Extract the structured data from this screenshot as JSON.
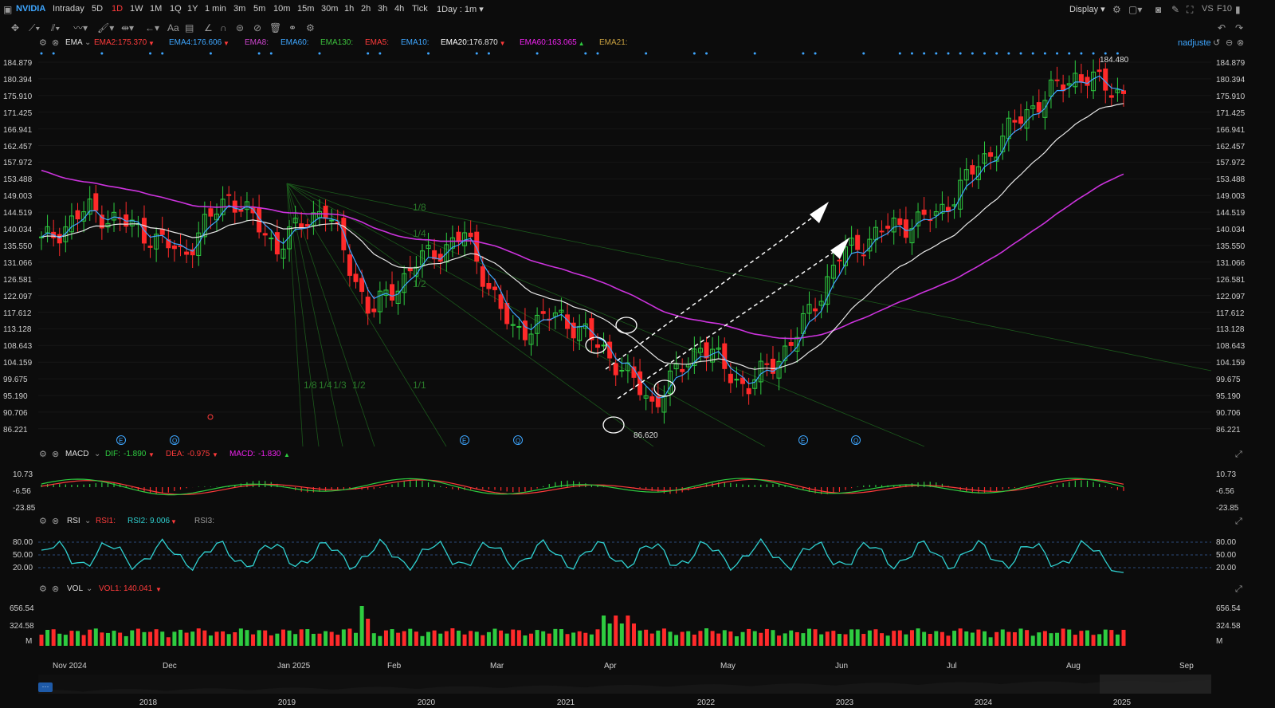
{
  "toolbar": {
    "symbol": "NVIDIA",
    "periods": [
      "Intraday",
      "5D",
      "1D",
      "1W",
      "1M",
      "1Q",
      "1Y",
      "1 min",
      "3m",
      "5m",
      "10m",
      "15m",
      "30m",
      "1h",
      "2h",
      "3h",
      "4h",
      "Tick"
    ],
    "active_period": "1D",
    "range_select": "1Day : 1m",
    "display": "Display",
    "vs": "VS",
    "f10": "F10"
  },
  "ema_header": {
    "name": "EMA",
    "items": [
      {
        "label": "EMA2:",
        "value": "175.370",
        "color": "#ff3b3b",
        "arrow": "▼"
      },
      {
        "label": "EMA4:",
        "value": "176.606",
        "color": "#3ea6ff",
        "arrow": "▼"
      },
      {
        "label": "EMA8:",
        "value": "",
        "color": "#cc44cc",
        "arrow": ""
      },
      {
        "label": "EMA60:",
        "value": "",
        "color": "#3ea6ff",
        "arrow": ""
      },
      {
        "label": "EMA130:",
        "value": "",
        "color": "#3cbe3c",
        "arrow": ""
      },
      {
        "label": "EMA5:",
        "value": "",
        "color": "#ff3b3b",
        "arrow": ""
      },
      {
        "label": "EMA10:",
        "value": "",
        "color": "#3ea6ff",
        "arrow": ""
      },
      {
        "label": "EMA20:",
        "value": "176.870",
        "color": "#ffffff",
        "arrow": "▼"
      },
      {
        "label": "EMA60:",
        "value": "163.065",
        "color": "#ee22ee",
        "arrow": "▲"
      },
      {
        "label": "EMA21:",
        "value": "",
        "color": "#c8a040",
        "arrow": ""
      }
    ],
    "user": "nadjuste"
  },
  "price_axis": [
    "184.879",
    "180.394",
    "175.910",
    "171.425",
    "166.941",
    "162.457",
    "157.972",
    "153.488",
    "149.003",
    "144.519",
    "140.034",
    "135.550",
    "131.066",
    "126.581",
    "122.097",
    "117.612",
    "113.128",
    "108.643",
    "104.159",
    "99.675",
    "95.190",
    "90.706",
    "86.221"
  ],
  "annotations": {
    "high_label": "184.480",
    "low_label": "86.620",
    "fan_labels": [
      "1/8",
      "1/4",
      "1/2",
      "1/1",
      "1/8",
      "1/4",
      "1/3",
      "1/2"
    ],
    "event_markers": [
      "E",
      "Q",
      "E",
      "Q",
      "E",
      "Q"
    ]
  },
  "macd_header": {
    "name": "MACD",
    "dif_label": "DIF:",
    "dif_value": "-1.890",
    "dif_arrow": "▼",
    "dea_label": "DEA:",
    "dea_value": "-0.975",
    "dea_arrow": "▼",
    "macd_label": "MACD:",
    "macd_value": "-1.830",
    "macd_arrow": "▲",
    "axis": [
      "10.73",
      "-6.56",
      "-23.85"
    ]
  },
  "rsi_header": {
    "name": "RSI",
    "rsi1_label": "RSI1:",
    "rsi2_label": "RSI2:",
    "rsi2_value": "9.006",
    "rsi2_arrow": "▼",
    "rsi3_label": "RSI3:",
    "axis": [
      "80.00",
      "50.00",
      "20.00"
    ]
  },
  "vol_header": {
    "name": "VOL",
    "vol1_label": "VOL1:",
    "vol1_value": "140.041",
    "vol1_arrow": "▼",
    "axis": [
      "656.54",
      "324.58",
      "M"
    ]
  },
  "time_axis": [
    "Nov 2024",
    "Dec",
    "Jan 2025",
    "Feb",
    "Mar",
    "Apr",
    "May",
    "Jun",
    "Jul",
    "Aug",
    "Sep"
  ],
  "overview_axis": [
    "2018",
    "2019",
    "2020",
    "2021",
    "2022",
    "2023",
    "2024",
    "2025"
  ],
  "colors": {
    "up": "#2ecc40",
    "down": "#ff2a2a",
    "ema_fast": "#3ea6ff",
    "ema20": "#e8e8e8",
    "ema60": "#cc33dd",
    "accent": "#3ea6ff"
  },
  "chart_data": {
    "type": "candlestick",
    "title": "NVIDIA",
    "ylim": [
      86.221,
      184.879
    ],
    "high": 184.48,
    "low": 86.62,
    "ema20_last": 176.87,
    "ema60_last": 163.065,
    "close_path": [
      {
        "x": "Nov 2024",
        "y": 137
      },
      {
        "x": "Nov 2024",
        "y": 146
      },
      {
        "x": "Dec",
        "y": 141
      },
      {
        "x": "Dec",
        "y": 134
      },
      {
        "x": "Jan 2025",
        "y": 150
      },
      {
        "x": "Jan 2025",
        "y": 136
      },
      {
        "x": "Jan 2025",
        "y": 147
      },
      {
        "x": "Feb",
        "y": 118
      },
      {
        "x": "Feb",
        "y": 132
      },
      {
        "x": "Mar",
        "y": 139
      },
      {
        "x": "Mar",
        "y": 113
      },
      {
        "x": "Mar",
        "y": 118
      },
      {
        "x": "Apr",
        "y": 108
      },
      {
        "x": "Apr",
        "y": 94
      },
      {
        "x": "Apr",
        "y": 110
      },
      {
        "x": "Apr",
        "y": 98
      },
      {
        "x": "May",
        "y": 111
      },
      {
        "x": "May",
        "y": 134
      },
      {
        "x": "Jun",
        "y": 141
      },
      {
        "x": "Jun",
        "y": 144
      },
      {
        "x": "Jul",
        "y": 159
      },
      {
        "x": "Jul",
        "y": 173
      },
      {
        "x": "Aug",
        "y": 182
      },
      {
        "x": "Aug",
        "y": 177
      }
    ]
  }
}
